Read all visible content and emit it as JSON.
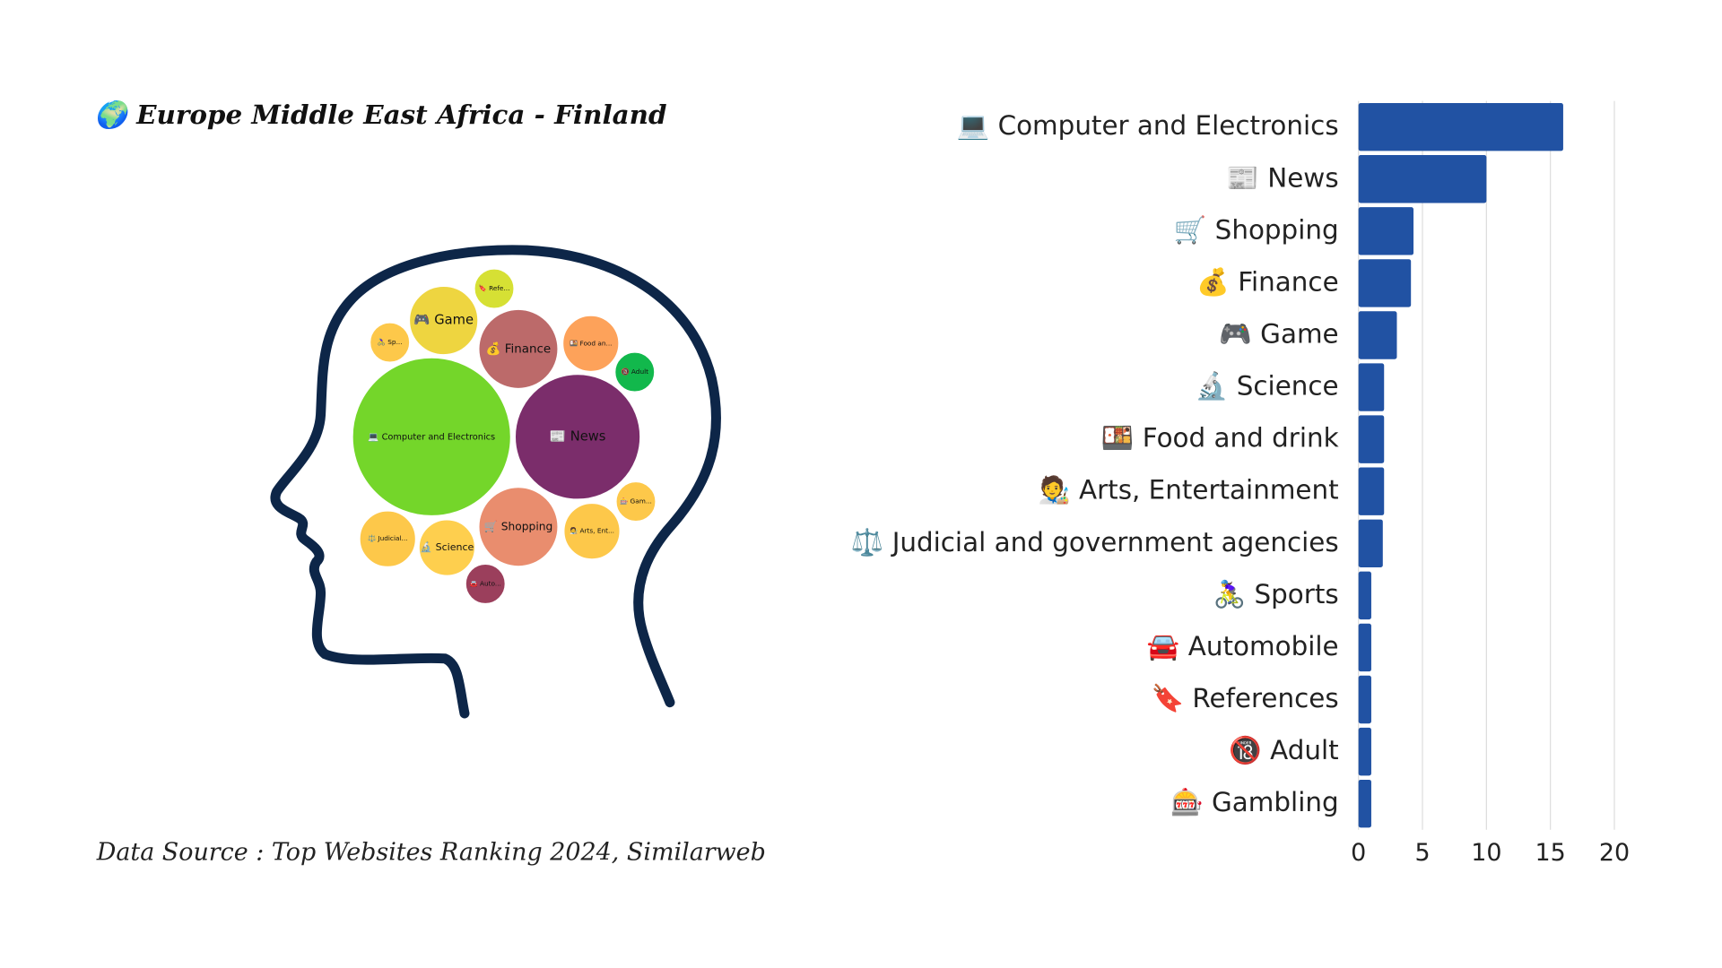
{
  "title": "🌍 Europe Middle East Africa - Finland",
  "source": "Data Source : Top Websites Ranking 2024, Similarweb",
  "chart_data": [
    {
      "type": "bubble",
      "labels": [
        "💻 Computer and Electronics",
        "📰 News",
        "🛒 Shopping",
        "💰 Finance",
        "🎮 Game",
        "🔬 Science",
        "🍱 Food an...",
        "🧑‍🎨 Arts, Ent...",
        "⚖️ Judicial...",
        "🚴‍♀️ Sp...",
        "🚘 Auto...",
        "🔖 Refe...",
        "🔞 Adult",
        "🎰 Gam..."
      ],
      "values": [
        16,
        10,
        4,
        4,
        3,
        2,
        2,
        2,
        2,
        1,
        1,
        1,
        1,
        1
      ],
      "colors": [
        "#74d62a",
        "#7b2d6b",
        "#e98d6e",
        "#bc6a6a",
        "#eed540",
        "#fecf4e",
        "#fda25a",
        "#fdc84a",
        "#fdc84a",
        "#fdc84a",
        "#9b3f5c",
        "#d6e034",
        "#12b84c",
        "#fdc84a"
      ]
    },
    {
      "type": "bar",
      "categories": [
        "💻 Computer and Electronics",
        "📰 News",
        "🛒 Shopping",
        "💰 Finance",
        "🎮 Game",
        "🔬 Science",
        "🍱 Food and drink",
        "🧑‍🎨 Arts, Entertainment",
        "⚖️ Judicial and government agencies",
        "🚴‍♀️ Sports",
        "🚘 Automobile",
        "🔖 References",
        "🔞 Adult",
        "🎰 Gambling"
      ],
      "values": [
        16,
        10,
        4.3,
        4.1,
        3,
        2,
        2,
        2,
        1.9,
        1,
        1,
        1,
        1,
        1
      ],
      "color": "#2152a3",
      "xlim": [
        0,
        20
      ],
      "xticks": [
        0,
        5,
        10,
        15,
        20
      ],
      "grid": true
    }
  ]
}
